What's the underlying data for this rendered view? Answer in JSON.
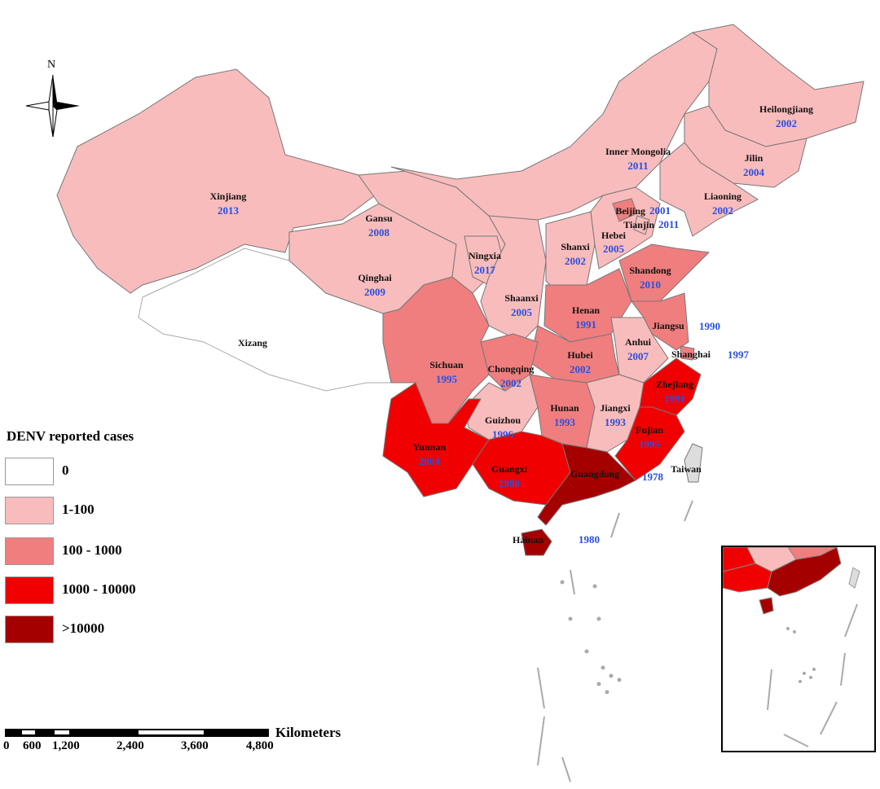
{
  "compass": {
    "label": "N"
  },
  "legend": {
    "title": "DENV reported cases",
    "items": [
      {
        "label": "0",
        "color": "#ffffff"
      },
      {
        "label": "1-100",
        "color": "#f9bcbc"
      },
      {
        "label": "100 - 1000",
        "color": "#f07e7e"
      },
      {
        "label": "1000 - 10000",
        "color": "#f00000"
      },
      {
        "label": ">10000",
        "color": "#a50000"
      }
    ]
  },
  "provinces": [
    {
      "name": "Xinjiang",
      "year": "2013",
      "category": 1
    },
    {
      "name": "Xizang",
      "year": "",
      "category": 0
    },
    {
      "name": "Qinghai",
      "year": "2009",
      "category": 1
    },
    {
      "name": "Gansu",
      "year": "2008",
      "category": 1
    },
    {
      "name": "Inner Mongolia",
      "year": "2011",
      "category": 1
    },
    {
      "name": "Heilongjiang",
      "year": "2002",
      "category": 1
    },
    {
      "name": "Jilin",
      "year": "2004",
      "category": 1
    },
    {
      "name": "Liaoning",
      "year": "2002",
      "category": 1
    },
    {
      "name": "Ningxia",
      "year": "2017",
      "category": 1
    },
    {
      "name": "Shaanxi",
      "year": "2005",
      "category": 1
    },
    {
      "name": "Shanxi",
      "year": "2002",
      "category": 1
    },
    {
      "name": "Hebei",
      "year": "2005",
      "category": 1
    },
    {
      "name": "Beijing",
      "year": "2001",
      "category": 2
    },
    {
      "name": "Tianjin",
      "year": "2011",
      "category": 1
    },
    {
      "name": "Shandong",
      "year": "2010",
      "category": 2
    },
    {
      "name": "Henan",
      "year": "1991",
      "category": 2
    },
    {
      "name": "Jiangsu",
      "year": "1990",
      "category": 2
    },
    {
      "name": "Anhui",
      "year": "2007",
      "category": 1
    },
    {
      "name": "Shanghai",
      "year": "1997",
      "category": 2
    },
    {
      "name": "Hubei",
      "year": "2002",
      "category": 2
    },
    {
      "name": "Chongqing",
      "year": "2002",
      "category": 2
    },
    {
      "name": "Sichuan",
      "year": "1995",
      "category": 2
    },
    {
      "name": "Guizhou",
      "year": "1996",
      "category": 1
    },
    {
      "name": "Hunan",
      "year": "1993",
      "category": 2
    },
    {
      "name": "Jiangxi",
      "year": "1993",
      "category": 1
    },
    {
      "name": "Zhejiang",
      "year": "1991",
      "category": 3
    },
    {
      "name": "Fujian",
      "year": "1995",
      "category": 3
    },
    {
      "name": "Yunnan",
      "year": "2004",
      "category": 3
    },
    {
      "name": "Guangxi",
      "year": "1980",
      "category": 3
    },
    {
      "name": "Guangdong",
      "year": "1978",
      "category": 4
    },
    {
      "name": "Hainan",
      "year": "1980",
      "category": 4
    },
    {
      "name": "Taiwan",
      "year": "",
      "category": -1
    }
  ],
  "scale_bar": {
    "ticks": [
      "0",
      "600",
      "1,200",
      "2,400",
      "3,600",
      "4,800"
    ],
    "unit": "Kilometers"
  }
}
